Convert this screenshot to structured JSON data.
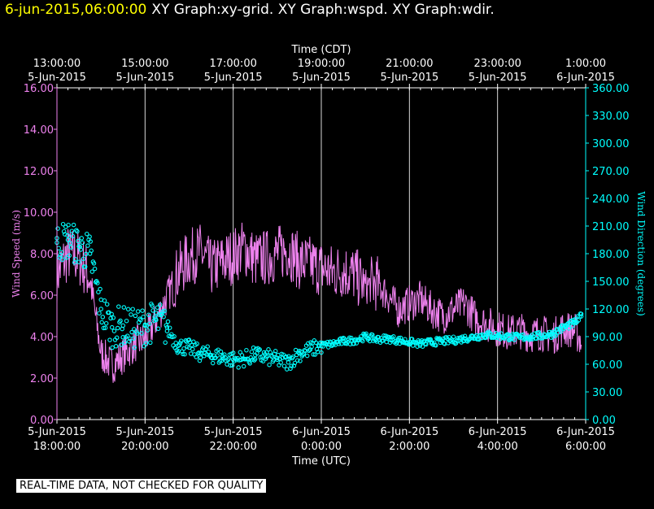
{
  "header": {
    "timestamp": "6-jun-2015,06:00:00",
    "graphs": "XY Graph:xy-grid.  XY Graph:wspd.  XY Graph:wdir."
  },
  "footer": {
    "qc_note": "REAL-TIME DATA, NOT CHECKED FOR QUALITY"
  },
  "chart_data": {
    "type": "line",
    "title": "",
    "xlabel_bottom": "Time (UTC)",
    "xlabel_top": "Time (CDT)",
    "ylabel_left": "Wind Speed (m/s)",
    "ylabel_right": "Wind Direction (degrees)",
    "x_range_utc_hours": [
      18,
      30
    ],
    "ylim_left": [
      0,
      16
    ],
    "ylim_right": [
      0,
      360
    ],
    "grid": "vertical",
    "bottom_ticks": [
      {
        "x": 18,
        "date": "5-Jun-2015",
        "time": "18:00:00"
      },
      {
        "x": 20,
        "date": "5-Jun-2015",
        "time": "20:00:00"
      },
      {
        "x": 22,
        "date": "5-Jun-2015",
        "time": "22:00:00"
      },
      {
        "x": 24,
        "date": "6-Jun-2015",
        "time": "0:00:00"
      },
      {
        "x": 26,
        "date": "6-Jun-2015",
        "time": "2:00:00"
      },
      {
        "x": 28,
        "date": "6-Jun-2015",
        "time": "4:00:00"
      },
      {
        "x": 30,
        "date": "6-Jun-2015",
        "time": "6:00:00"
      }
    ],
    "top_ticks": [
      {
        "x": 18,
        "time": "13:00:00",
        "date": "5-Jun-2015"
      },
      {
        "x": 20,
        "time": "15:00:00",
        "date": "5-Jun-2015"
      },
      {
        "x": 22,
        "time": "17:00:00",
        "date": "5-Jun-2015"
      },
      {
        "x": 24,
        "time": "19:00:00",
        "date": "5-Jun-2015"
      },
      {
        "x": 26,
        "time": "21:00:00",
        "date": "5-Jun-2015"
      },
      {
        "x": 28,
        "time": "23:00:00",
        "date": "5-Jun-2015"
      },
      {
        "x": 30,
        "time": "1:00:00",
        "date": "6-Jun-2015"
      }
    ],
    "left_ticks": [
      "0.00",
      "2.00",
      "4.00",
      "6.00",
      "8.00",
      "10.00",
      "12.00",
      "14.00",
      "16.00"
    ],
    "right_ticks": [
      "0.00",
      "30.00",
      "60.00",
      "90.00",
      "120.00",
      "150.00",
      "180.00",
      "210.00",
      "240.00",
      "270.00",
      "300.00",
      "330.00",
      "360.00"
    ],
    "series": [
      {
        "name": "Wind Speed",
        "axis": "left",
        "style": "line",
        "color": "#ee82ee",
        "x": [
          18.0,
          18.25,
          18.5,
          18.75,
          19.0,
          19.25,
          19.5,
          19.75,
          20.0,
          20.25,
          20.5,
          20.75,
          21.0,
          21.25,
          21.5,
          21.75,
          22.0,
          22.25,
          22.5,
          22.75,
          23.0,
          23.25,
          23.5,
          23.75,
          24.0,
          24.25,
          24.5,
          24.75,
          25.0,
          25.25,
          25.5,
          25.75,
          26.0,
          26.25,
          26.5,
          26.75,
          27.0,
          27.25,
          27.5,
          27.75,
          28.0,
          28.25,
          28.5,
          28.75,
          29.0,
          29.25,
          29.5,
          29.75,
          29.9
        ],
        "values": [
          7.0,
          8.0,
          7.8,
          6.8,
          3.2,
          2.6,
          3.1,
          3.6,
          3.9,
          4.8,
          5.9,
          7.1,
          7.8,
          8.1,
          7.3,
          7.6,
          7.9,
          8.3,
          7.7,
          7.8,
          8.0,
          8.2,
          7.6,
          7.5,
          7.3,
          7.1,
          7.2,
          7.0,
          6.4,
          6.6,
          6.0,
          5.3,
          5.6,
          5.8,
          5.3,
          5.0,
          5.3,
          5.6,
          4.9,
          4.6,
          4.4,
          4.2,
          4.3,
          4.1,
          4.2,
          4.0,
          4.4,
          4.3,
          3.8
        ]
      },
      {
        "name": "Wind Direction",
        "axis": "right",
        "style": "points",
        "color": "#00ffff",
        "x": [
          18.0,
          18.25,
          18.5,
          18.75,
          19.0,
          19.25,
          19.5,
          19.75,
          20.0,
          20.25,
          20.5,
          20.75,
          21.0,
          21.25,
          21.5,
          21.75,
          22.0,
          22.25,
          22.5,
          22.75,
          23.0,
          23.25,
          23.5,
          23.75,
          24.0,
          24.25,
          24.5,
          24.75,
          25.0,
          25.25,
          25.5,
          25.75,
          26.0,
          26.25,
          26.5,
          26.75,
          27.0,
          27.25,
          27.5,
          27.75,
          28.0,
          28.25,
          28.5,
          28.75,
          29.0,
          29.25,
          29.5,
          29.75,
          29.9
        ],
        "values": [
          192,
          195,
          188,
          180,
          120,
          100,
          102,
          98,
          102,
          108,
          100,
          80,
          78,
          72,
          70,
          68,
          65,
          66,
          70,
          68,
          65,
          62,
          72,
          76,
          80,
          82,
          85,
          86,
          90,
          87,
          88,
          86,
          84,
          82,
          84,
          85,
          86,
          88,
          90,
          92,
          91,
          90,
          89,
          90,
          91,
          93,
          100,
          105,
          112
        ]
      }
    ]
  }
}
